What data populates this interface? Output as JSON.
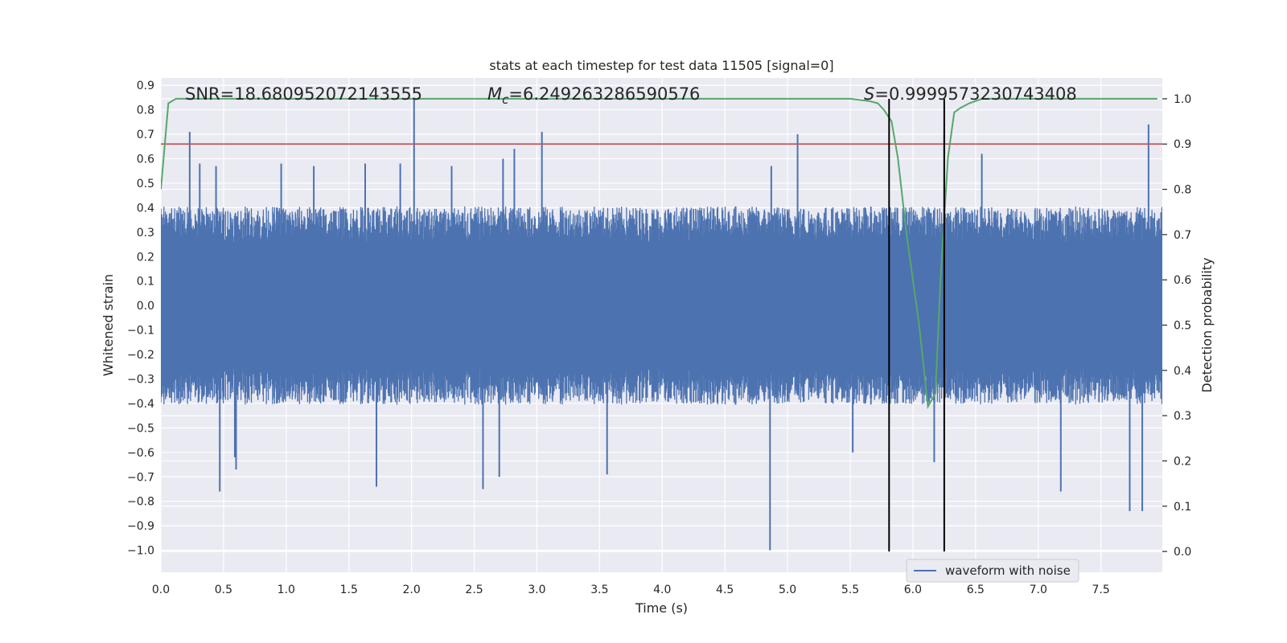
{
  "chart_data": {
    "type": "line",
    "title": "stats at each timestep for test data 11505 [signal=0]",
    "xlabel": "Time (s)",
    "ylabel": "Whitened strain",
    "y2label": "Detection probability",
    "xlim": [
      0.0,
      7.99
    ],
    "ylim": [
      -1.09,
      0.93
    ],
    "y2lim": [
      -0.046,
      1.046
    ],
    "xticks": [
      "0.0",
      "0.5",
      "1.0",
      "1.5",
      "2.0",
      "2.5",
      "3.0",
      "3.5",
      "4.0",
      "4.5",
      "5.0",
      "5.5",
      "6.0",
      "6.5",
      "7.0",
      "7.5"
    ],
    "yticks": [
      "0.9",
      "0.8",
      "0.7",
      "0.6",
      "0.5",
      "0.4",
      "0.3",
      "0.2",
      "0.1",
      "0.0",
      "−0.1",
      "−0.2",
      "−0.3",
      "−0.4",
      "−0.5",
      "−0.6",
      "−0.7",
      "−0.8",
      "−0.9",
      "−1.0"
    ],
    "y2ticks": [
      "1.0",
      "0.9",
      "0.8",
      "0.7",
      "0.6",
      "0.5",
      "0.4",
      "0.3",
      "0.2",
      "0.1",
      "0.0"
    ],
    "grid": true,
    "legend_placement": "lower-right",
    "annotations": {
      "snr": "SNR=18.680952072143555",
      "mc_sym": "M",
      "mc_sub": "c",
      "mc_val": "=6.249263286590576",
      "s_sym": "S",
      "s_val": "=0.9999573230743408"
    },
    "series": [
      {
        "name": "waveform with noise",
        "axis": "left",
        "color": "#4c72b0",
        "envelope": {
          "typical_abs": 0.3,
          "max": 0.85,
          "min": -1.0
        },
        "spikes_up": [
          [
            0.23,
            0.71
          ],
          [
            0.31,
            0.58
          ],
          [
            0.44,
            0.57
          ],
          [
            0.96,
            0.58
          ],
          [
            1.22,
            0.57
          ],
          [
            1.63,
            0.58
          ],
          [
            1.91,
            0.58
          ],
          [
            2.02,
            0.85
          ],
          [
            2.32,
            0.57
          ],
          [
            2.73,
            0.6
          ],
          [
            2.82,
            0.64
          ],
          [
            3.04,
            0.71
          ],
          [
            4.87,
            0.57
          ],
          [
            5.08,
            0.7
          ],
          [
            6.25,
            0.7
          ],
          [
            6.55,
            0.62
          ],
          [
            7.88,
            0.74
          ]
        ],
        "spikes_down": [
          [
            0.47,
            -0.76
          ],
          [
            0.59,
            -0.62
          ],
          [
            0.6,
            -0.67
          ],
          [
            1.72,
            -0.74
          ],
          [
            2.57,
            -0.75
          ],
          [
            2.7,
            -0.7
          ],
          [
            3.56,
            -0.69
          ],
          [
            4.86,
            -1.0
          ],
          [
            5.52,
            -0.6
          ],
          [
            6.17,
            -0.64
          ],
          [
            7.18,
            -0.76
          ],
          [
            7.73,
            -0.84
          ],
          [
            7.83,
            -0.84
          ]
        ],
        "legend_label": "waveform with noise"
      },
      {
        "axis": "right",
        "color": "#55a868",
        "x": [
          0.0,
          0.06,
          0.12,
          0.3,
          1.0,
          2.0,
          3.0,
          4.0,
          5.0,
          5.5,
          5.65,
          5.72,
          5.77,
          5.83,
          5.88,
          5.95,
          6.05,
          6.12,
          6.18,
          6.22,
          6.28,
          6.33,
          6.38,
          6.45,
          6.55,
          6.7,
          7.0,
          7.5,
          7.95
        ],
        "values": [
          0.8,
          0.99,
          1.0,
          1.0,
          1.0,
          1.0,
          1.0,
          1.0,
          1.0,
          1.0,
          0.995,
          0.99,
          0.975,
          0.95,
          0.87,
          0.7,
          0.5,
          0.32,
          0.35,
          0.6,
          0.87,
          0.97,
          0.98,
          0.99,
          1.0,
          1.0,
          1.0,
          1.0,
          1.0
        ]
      },
      {
        "axis": "right",
        "color": "#c44e52",
        "values": [
          0.9
        ]
      }
    ],
    "vlines": [
      5.81,
      6.25
    ]
  }
}
